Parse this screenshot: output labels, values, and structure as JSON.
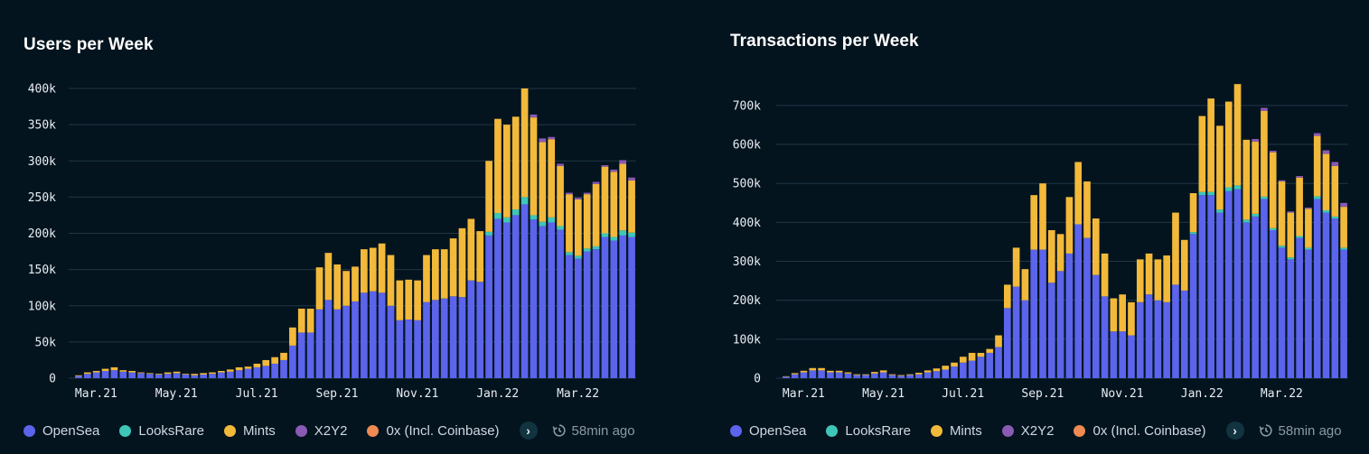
{
  "legend": {
    "series": [
      {
        "name": "OpenSea",
        "color": "#5b64ea"
      },
      {
        "name": "LooksRare",
        "color": "#3ec7b8"
      },
      {
        "name": "Mints",
        "color": "#f2b93a"
      },
      {
        "name": "X2Y2",
        "color": "#8a5ab4"
      },
      {
        "name": "0x (Incl. Coinbase)",
        "color": "#ee8a52"
      }
    ],
    "next_glyph": "›",
    "updated_text": "58min ago"
  },
  "chart_data": [
    {
      "type": "bar",
      "stacked": true,
      "title": "Users per Week",
      "xlabel": "",
      "ylabel": "",
      "ylim": [
        0,
        400000
      ],
      "yticks": [
        0,
        50000,
        100000,
        150000,
        200000,
        250000,
        300000,
        350000,
        400000
      ],
      "ytick_labels": [
        "0",
        "50k",
        "100k",
        "150k",
        "200k",
        "250k",
        "300k",
        "350k",
        "400k"
      ],
      "xtick_labels": [
        {
          "label": "Mar.21",
          "index": 0
        },
        {
          "label": "May.21",
          "index": 9
        },
        {
          "label": "Jul.21",
          "index": 18
        },
        {
          "label": "Sep.21",
          "index": 27
        },
        {
          "label": "Nov.21",
          "index": 36
        },
        {
          "label": "Jan.22",
          "index": 45
        },
        {
          "label": "Mar.22",
          "index": 54
        }
      ],
      "grid": true,
      "series": [
        {
          "name": "OpenSea",
          "values": [
            3000,
            6000,
            8000,
            10000,
            11000,
            9000,
            8000,
            7000,
            6000,
            5000,
            6000,
            7000,
            5000,
            4000,
            5000,
            6000,
            8000,
            9000,
            11000,
            13000,
            15000,
            17000,
            20000,
            25000,
            45000,
            63000,
            63000,
            95000,
            108000,
            95000,
            100000,
            106000,
            118000,
            120000,
            118000,
            100000,
            80000,
            81000,
            80000,
            105000,
            108000,
            110000,
            113000,
            112000,
            135000,
            133000,
            197000,
            220000,
            215000,
            225000,
            240000,
            219000,
            210000,
            215000,
            205000,
            170000,
            165000,
            175000,
            178000,
            195000,
            190000,
            197000,
            195000
          ]
        },
        {
          "name": "LooksRare",
          "values": [
            0,
            0,
            0,
            0,
            0,
            0,
            0,
            0,
            0,
            0,
            0,
            0,
            0,
            0,
            0,
            0,
            0,
            0,
            0,
            0,
            0,
            0,
            0,
            0,
            0,
            0,
            0,
            0,
            0,
            0,
            0,
            0,
            0,
            0,
            0,
            0,
            0,
            0,
            0,
            0,
            0,
            0,
            0,
            0,
            0,
            0,
            5000,
            8000,
            7000,
            8000,
            10000,
            6000,
            6000,
            7000,
            5000,
            4000,
            4000,
            4000,
            4000,
            5000,
            5000,
            7000,
            6000
          ]
        },
        {
          "name": "Mints",
          "values": [
            1000,
            2000,
            2000,
            3000,
            4000,
            2000,
            2000,
            1000,
            1000,
            1000,
            2000,
            2000,
            1000,
            2000,
            2000,
            2000,
            2000,
            3000,
            4000,
            3000,
            5000,
            8000,
            9000,
            10000,
            25000,
            33000,
            33000,
            58000,
            65000,
            62000,
            48000,
            48000,
            60000,
            60000,
            68000,
            70000,
            55000,
            55000,
            55000,
            65000,
            70000,
            68000,
            80000,
            95000,
            85000,
            70000,
            98000,
            130000,
            128000,
            128000,
            150000,
            135000,
            110000,
            108000,
            83000,
            80000,
            78000,
            75000,
            86000,
            92000,
            90000,
            92000,
            72000
          ]
        },
        {
          "name": "X2Y2",
          "values": [
            0,
            0,
            0,
            0,
            0,
            0,
            0,
            0,
            0,
            0,
            0,
            0,
            0,
            0,
            0,
            0,
            0,
            0,
            0,
            0,
            0,
            0,
            0,
            0,
            0,
            0,
            0,
            0,
            0,
            0,
            0,
            0,
            0,
            0,
            0,
            0,
            0,
            0,
            0,
            0,
            0,
            0,
            0,
            0,
            0,
            0,
            0,
            0,
            0,
            0,
            0,
            4000,
            5000,
            3000,
            3000,
            2000,
            2000,
            2000,
            3000,
            2000,
            3000,
            5000,
            4000
          ]
        },
        {
          "name": "0x (Incl. Coinbase)",
          "values": [
            0,
            0,
            0,
            0,
            0,
            0,
            0,
            0,
            0,
            0,
            0,
            0,
            0,
            0,
            0,
            0,
            0,
            0,
            0,
            0,
            0,
            0,
            0,
            0,
            0,
            0,
            0,
            0,
            0,
            0,
            0,
            0,
            0,
            0,
            0,
            0,
            0,
            0,
            0,
            0,
            0,
            0,
            0,
            0,
            0,
            0,
            0,
            0,
            0,
            0,
            0,
            0,
            0,
            0,
            0,
            0,
            0,
            0,
            0,
            0,
            0,
            0,
            0
          ]
        }
      ]
    },
    {
      "type": "bar",
      "stacked": true,
      "title": "Transactions per Week",
      "xlabel": "",
      "ylabel": "",
      "ylim": [
        0,
        760000
      ],
      "yticks": [
        0,
        100000,
        200000,
        300000,
        400000,
        500000,
        600000,
        700000
      ],
      "ytick_labels": [
        "0",
        "100k",
        "200k",
        "300k",
        "400k",
        "500k",
        "600k",
        "700k"
      ],
      "xtick_labels": [
        {
          "label": "Mar.21",
          "index": 0
        },
        {
          "label": "May.21",
          "index": 9
        },
        {
          "label": "Jul.21",
          "index": 18
        },
        {
          "label": "Sep.21",
          "index": 27
        },
        {
          "label": "Nov.21",
          "index": 36
        },
        {
          "label": "Jan.22",
          "index": 45
        },
        {
          "label": "Mar.22",
          "index": 54
        }
      ],
      "grid": true,
      "series": [
        {
          "name": "OpenSea",
          "values": [
            4000,
            10000,
            15000,
            20000,
            20000,
            15000,
            15000,
            12000,
            8000,
            8000,
            12000,
            15000,
            8000,
            6000,
            8000,
            10000,
            15000,
            18000,
            22000,
            30000,
            40000,
            45000,
            55000,
            65000,
            80000,
            180000,
            235000,
            200000,
            330000,
            330000,
            245000,
            275000,
            320000,
            395000,
            360000,
            265000,
            210000,
            120000,
            120000,
            110000,
            195000,
            215000,
            200000,
            195000,
            240000,
            225000,
            370000,
            470000,
            470000,
            425000,
            480000,
            485000,
            400000,
            415000,
            460000,
            380000,
            335000,
            305000,
            360000,
            330000,
            460000,
            425000,
            410000,
            330000
          ]
        },
        {
          "name": "LooksRare",
          "values": [
            0,
            0,
            0,
            0,
            0,
            0,
            0,
            0,
            0,
            0,
            0,
            0,
            0,
            0,
            0,
            0,
            0,
            0,
            0,
            0,
            0,
            0,
            0,
            0,
            0,
            0,
            0,
            0,
            0,
            0,
            0,
            0,
            0,
            0,
            0,
            0,
            0,
            0,
            0,
            0,
            0,
            0,
            0,
            0,
            0,
            0,
            5000,
            8000,
            8000,
            8000,
            10000,
            10000,
            7000,
            7000,
            6000,
            5000,
            5000,
            5000,
            5000,
            5000,
            7000,
            6000,
            5000,
            5000
          ]
        },
        {
          "name": "Mints",
          "values": [
            1000,
            3000,
            4000,
            6000,
            6000,
            4000,
            4000,
            3000,
            2000,
            2000,
            4000,
            5000,
            2000,
            2000,
            2000,
            4000,
            5000,
            7000,
            10000,
            10000,
            15000,
            20000,
            10000,
            10000,
            30000,
            60000,
            100000,
            80000,
            140000,
            170000,
            135000,
            95000,
            145000,
            160000,
            145000,
            145000,
            110000,
            85000,
            95000,
            85000,
            110000,
            105000,
            105000,
            120000,
            185000,
            130000,
            100000,
            195000,
            240000,
            215000,
            220000,
            260000,
            205000,
            185000,
            220000,
            195000,
            165000,
            115000,
            150000,
            100000,
            155000,
            145000,
            130000,
            105000
          ]
        },
        {
          "name": "X2Y2",
          "values": [
            0,
            0,
            0,
            0,
            0,
            0,
            0,
            0,
            0,
            0,
            0,
            0,
            0,
            0,
            0,
            0,
            0,
            0,
            0,
            0,
            0,
            0,
            0,
            0,
            0,
            0,
            0,
            0,
            0,
            0,
            0,
            0,
            0,
            0,
            0,
            0,
            0,
            0,
            0,
            0,
            0,
            0,
            0,
            0,
            0,
            0,
            0,
            0,
            0,
            0,
            0,
            0,
            0,
            7000,
            8000,
            4000,
            3000,
            3000,
            4000,
            3000,
            7000,
            9000,
            10000,
            10000
          ]
        },
        {
          "name": "0x (Incl. Coinbase)",
          "values": [
            0,
            0,
            0,
            0,
            0,
            0,
            0,
            0,
            0,
            0,
            0,
            0,
            0,
            0,
            0,
            0,
            0,
            0,
            0,
            0,
            0,
            0,
            0,
            0,
            0,
            0,
            0,
            0,
            0,
            0,
            0,
            0,
            0,
            0,
            0,
            0,
            0,
            0,
            0,
            0,
            0,
            0,
            0,
            0,
            0,
            0,
            0,
            0,
            0,
            0,
            0,
            0,
            0,
            0,
            0,
            0,
            0,
            0,
            0,
            0,
            0,
            0,
            0,
            0
          ]
        }
      ]
    }
  ]
}
